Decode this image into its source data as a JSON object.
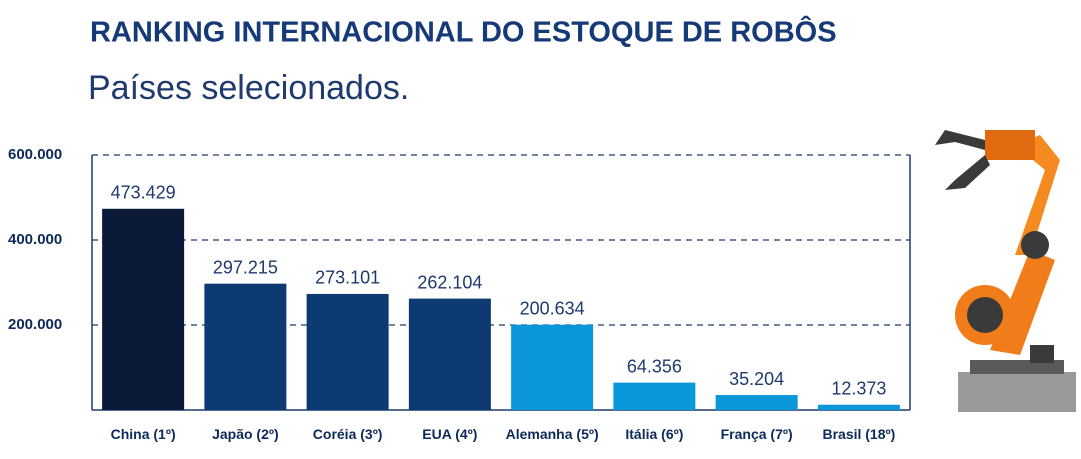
{
  "chart_data": {
    "type": "bar",
    "title": "RANKING INTERNACIONAL DO ESTOQUE DE ROBÔS",
    "subtitle": "Países selecionados.",
    "categories": [
      "China (1º)",
      "Japão (2º)",
      "Coréia (3º)",
      "EUA (4º)",
      "Alemanha (5º)",
      "Itália (6º)",
      "França (7º)",
      "Brasil (18º)"
    ],
    "values": [
      473429,
      297215,
      273101,
      262104,
      200634,
      64356,
      35204,
      12373
    ],
    "value_labels": [
      "473.429",
      "297.215",
      "273.101",
      "262.104",
      "200.634",
      "64.356",
      "35.204",
      "12.373"
    ],
    "colors": [
      "#0a1a38",
      "#0d3a72",
      "#0d3a72",
      "#0d3a72",
      "#0a97d9",
      "#0a97d9",
      "#0a97d9",
      "#0a97d9"
    ],
    "ylim": [
      0,
      600000
    ],
    "yticks": [
      {
        "value": 200000,
        "label": "200.000"
      },
      {
        "value": 400000,
        "label": "400.000"
      },
      {
        "value": 600000,
        "label": "600.000"
      }
    ],
    "grid": true
  }
}
